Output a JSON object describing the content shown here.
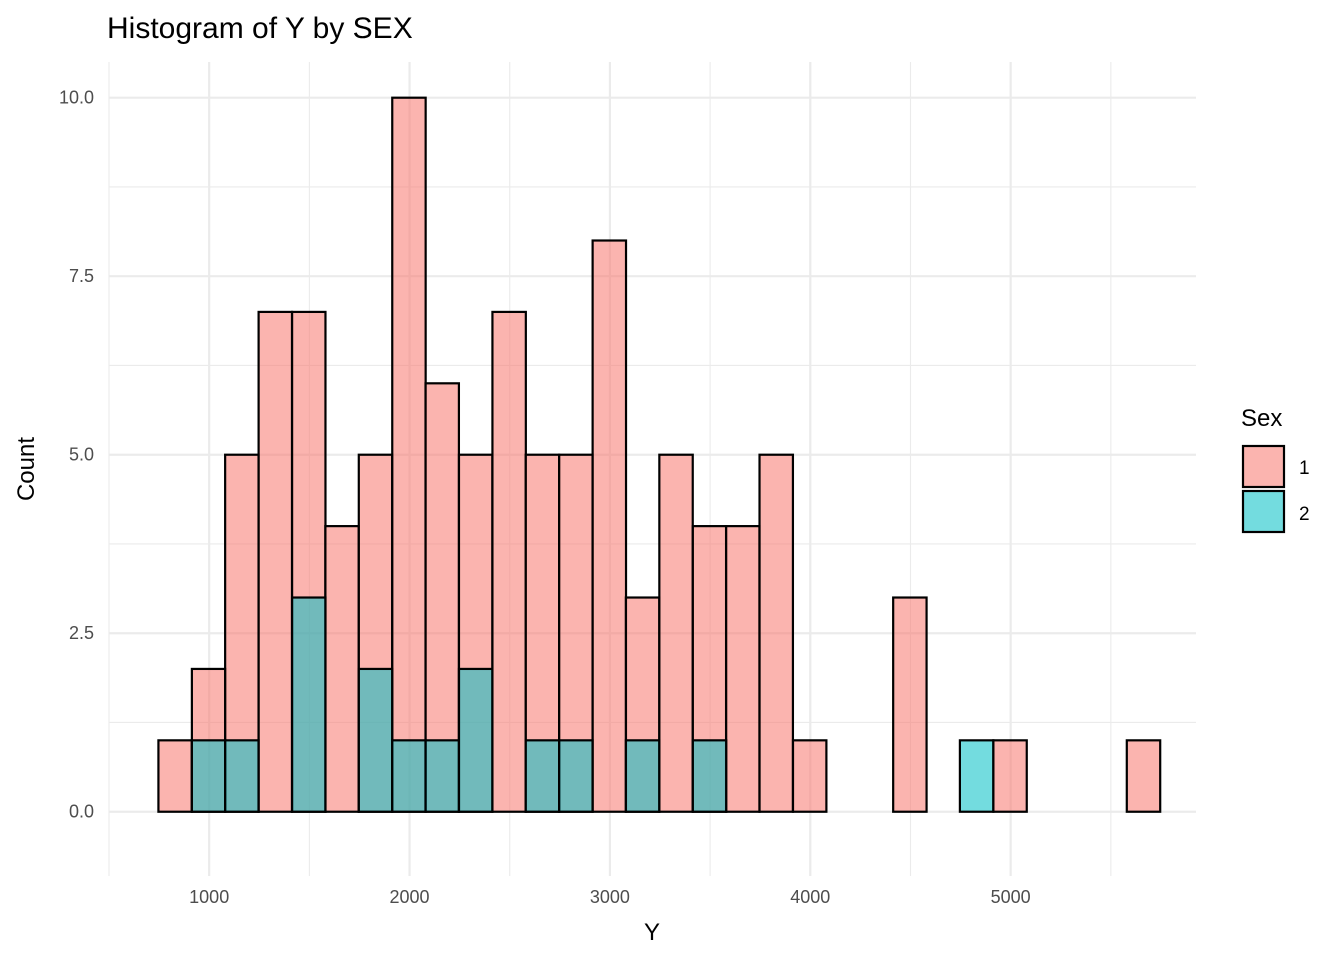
{
  "chart_data": {
    "type": "bar",
    "title": "Histogram of Y by SEX",
    "xlabel": "Y",
    "ylabel": "Count",
    "xlim": [
      500,
      5925
    ],
    "ylim": [
      -0.9,
      10.5
    ],
    "bin_width": 166.7,
    "x_ticks": [
      "1000",
      "2000",
      "3000",
      "4000",
      "5000"
    ],
    "y_ticks": [
      "0.0",
      "2.5",
      "5.0",
      "7.5",
      "10.0"
    ],
    "grid": true,
    "position": "identity",
    "legend": {
      "title": "Sex",
      "placement": "right",
      "entries": [
        "1",
        "2"
      ]
    },
    "bin_centers": [
      830,
      997,
      1163,
      1330,
      1497,
      1663,
      1830,
      1997,
      2163,
      2330,
      2497,
      2663,
      2830,
      2997,
      3163,
      3330,
      3497,
      3663,
      3830,
      3997,
      4163,
      4330,
      4497,
      4663,
      4830,
      4997,
      5163,
      5330,
      5497,
      5663
    ],
    "series": [
      {
        "name": "1",
        "color": "#F8766D",
        "values": [
          1,
          2,
          5,
          7,
          7,
          4,
          5,
          10,
          6,
          5,
          7,
          5,
          5,
          8,
          3,
          5,
          4,
          4,
          5,
          1,
          0,
          0,
          3,
          0,
          0,
          1,
          0,
          0,
          0,
          1
        ]
      },
      {
        "name": "2",
        "color": "#00BFC4",
        "values": [
          0,
          1,
          1,
          0,
          3,
          0,
          2,
          1,
          1,
          2,
          0,
          1,
          1,
          0,
          1,
          0,
          1,
          0,
          0,
          0,
          0,
          0,
          0,
          0,
          1,
          0,
          0,
          0,
          0,
          0
        ]
      }
    ]
  }
}
